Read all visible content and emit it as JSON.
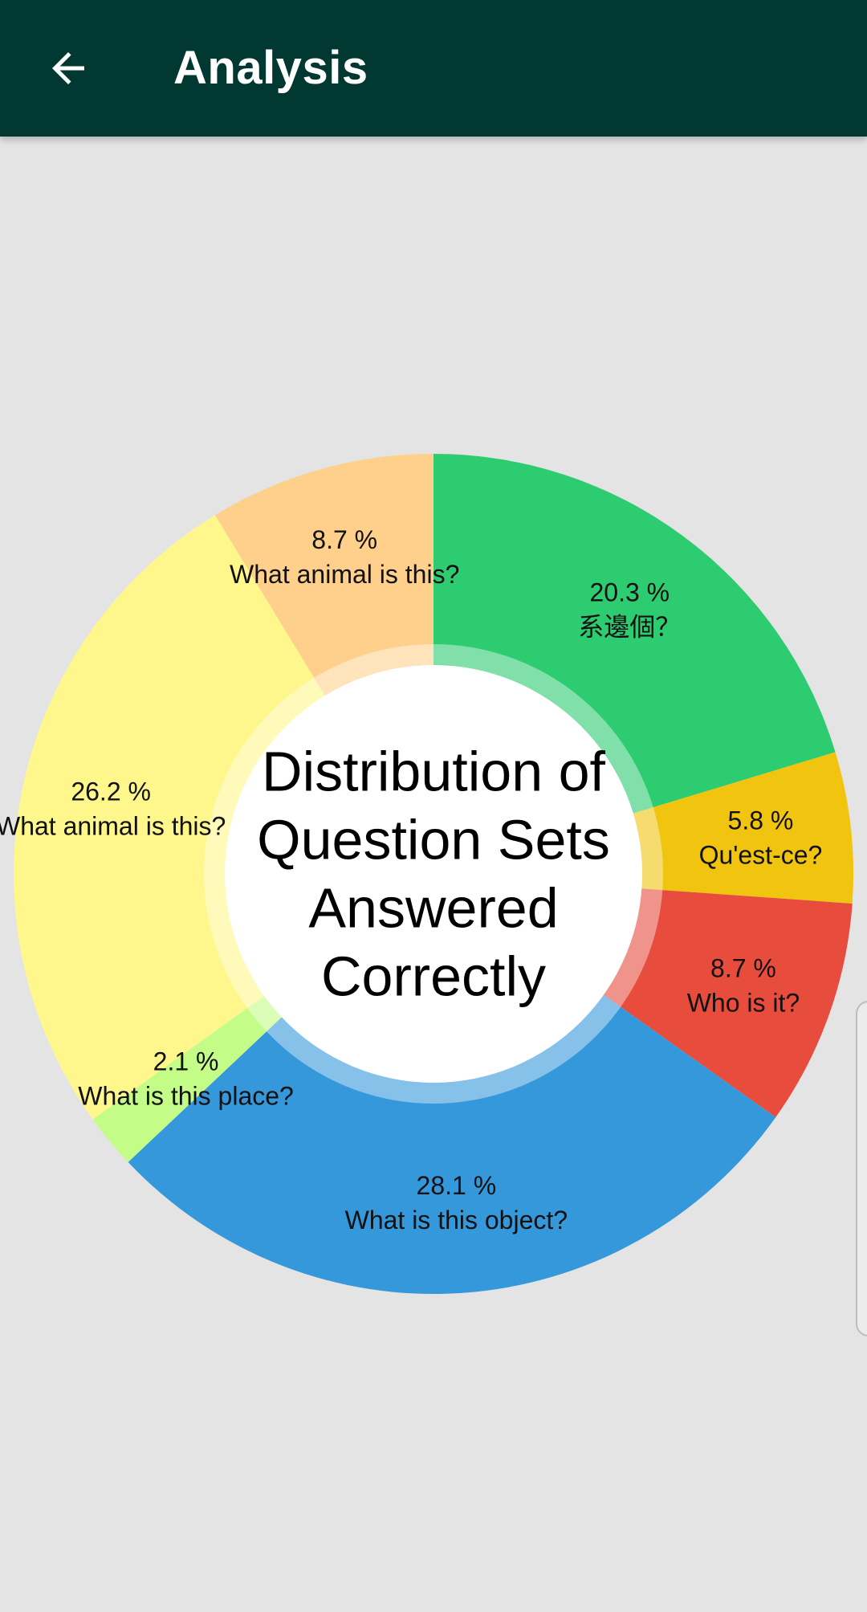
{
  "app_bar": {
    "title": "Analysis",
    "back_icon": "arrow-left-icon",
    "background_color": "#023832"
  },
  "chart_data": {
    "type": "pie",
    "center_title": [
      "Distribution of",
      "Question Sets",
      "Answered",
      "Correctly"
    ],
    "slices": [
      {
        "label": "系邊個？",
        "value": 20.3,
        "display": "20.3 %",
        "color": "#2ecc71"
      },
      {
        "label": "Qu'est-ce?",
        "value": 5.8,
        "display": "5.8 %",
        "color": "#f1c40f"
      },
      {
        "label": "Who is it?",
        "value": 8.7,
        "display": "8.7 %",
        "color": "#e74c3c"
      },
      {
        "label": "What is this object?",
        "value": 28.1,
        "display": "28.1 %",
        "color": "#3498db"
      },
      {
        "label": "What is this place?",
        "value": 2.1,
        "display": "2.1 %",
        "color": "#c3fd88"
      },
      {
        "label": "What animal is this?",
        "value": 26.2,
        "display": "26.2 %",
        "color": "#fff78c"
      },
      {
        "label": "What animal is this?",
        "value": 8.7,
        "display": "8.7 %",
        "color": "#ffd08c"
      }
    ]
  }
}
